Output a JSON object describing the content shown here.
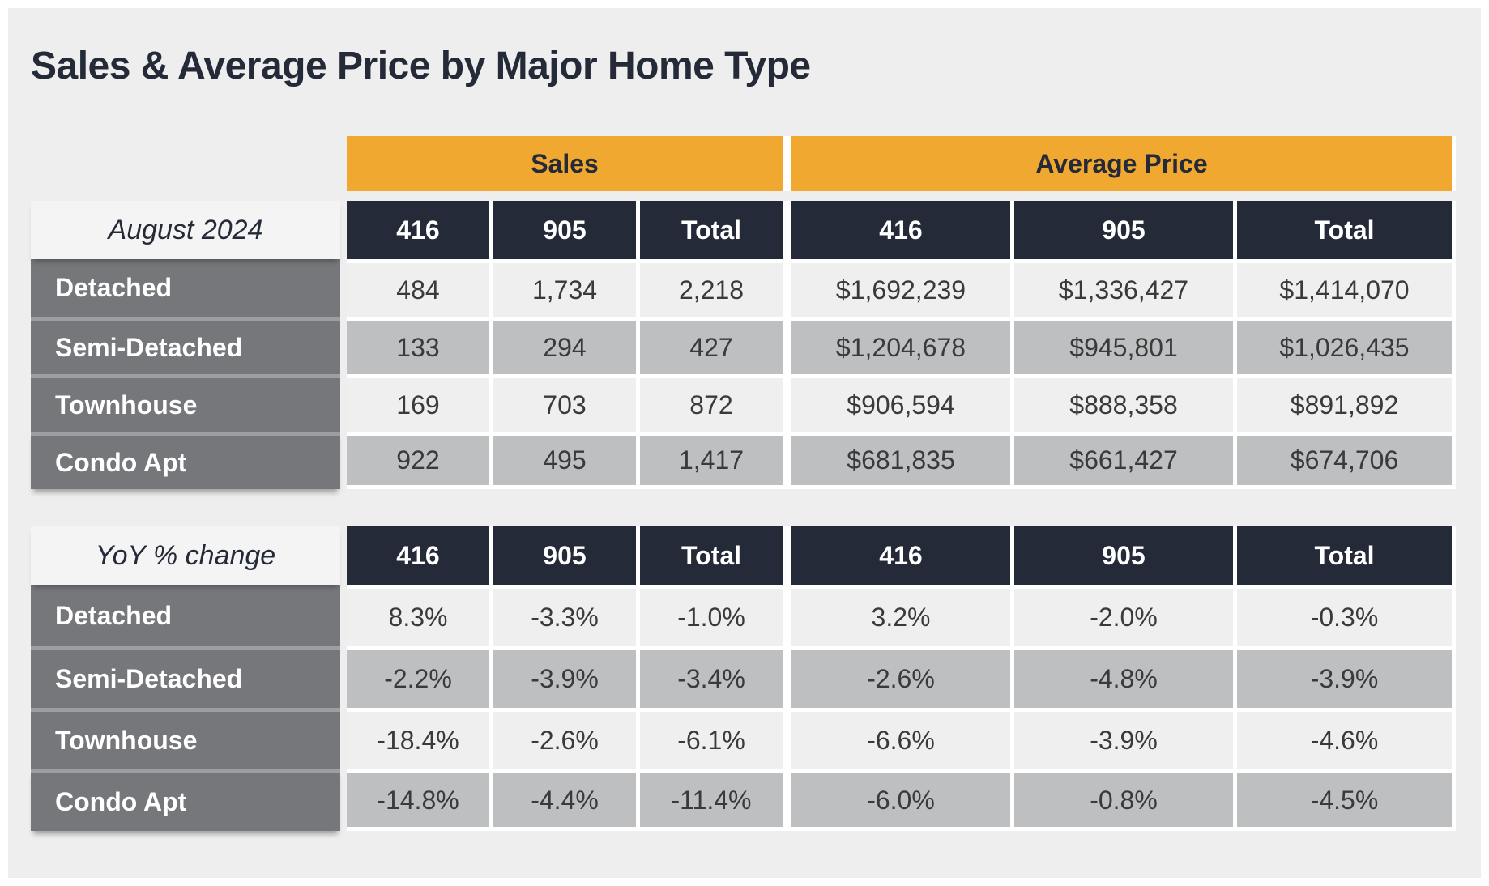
{
  "title": "Sales & Average Price by Major Home Type",
  "colors": {
    "accent_orange": "#f0a831",
    "header_navy": "#242a38",
    "row_label_gray": "#75777a",
    "zebra_dark": "#bebfc0",
    "zebra_light": "#f0efef",
    "canvas_bg": "#efeeee",
    "value_text": "#3a3a3a"
  },
  "chart_data": {
    "type": "table",
    "title": "Sales & Average Price by Major Home Type",
    "groups": [
      {
        "label": "Sales"
      },
      {
        "label": "Average Price"
      }
    ],
    "sections": [
      {
        "section_label": "August 2024",
        "columns": [
          "416",
          "905",
          "Total",
          "416",
          "905",
          "Total"
        ],
        "rows": [
          {
            "label": "Detached",
            "cells": [
              "484",
              "1,734",
              "2,218",
              "$1,692,239",
              "$1,336,427",
              "$1,414,070"
            ]
          },
          {
            "label": "Semi-Detached",
            "cells": [
              "133",
              "294",
              "427",
              "$1,204,678",
              "$945,801",
              "$1,026,435"
            ]
          },
          {
            "label": "Townhouse",
            "cells": [
              "169",
              "703",
              "872",
              "$906,594",
              "$888,358",
              "$891,892"
            ]
          },
          {
            "label": "Condo Apt",
            "cells": [
              "922",
              "495",
              "1,417",
              "$681,835",
              "$661,427",
              "$674,706"
            ]
          }
        ]
      },
      {
        "section_label": "YoY % change",
        "columns": [
          "416",
          "905",
          "Total",
          "416",
          "905",
          "Total"
        ],
        "rows": [
          {
            "label": "Detached",
            "cells": [
              "8.3%",
              "-3.3%",
              "-1.0%",
              "3.2%",
              "-2.0%",
              "-0.3%"
            ]
          },
          {
            "label": "Semi-Detached",
            "cells": [
              "-2.2%",
              "-3.9%",
              "-3.4%",
              "-2.6%",
              "-4.8%",
              "-3.9%"
            ]
          },
          {
            "label": "Townhouse",
            "cells": [
              "-18.4%",
              "-2.6%",
              "-6.1%",
              "-6.6%",
              "-3.9%",
              "-4.6%"
            ]
          },
          {
            "label": "Condo Apt",
            "cells": [
              "-14.8%",
              "-4.4%",
              "-11.4%",
              "-6.0%",
              "-0.8%",
              "-4.5%"
            ]
          }
        ]
      }
    ]
  }
}
